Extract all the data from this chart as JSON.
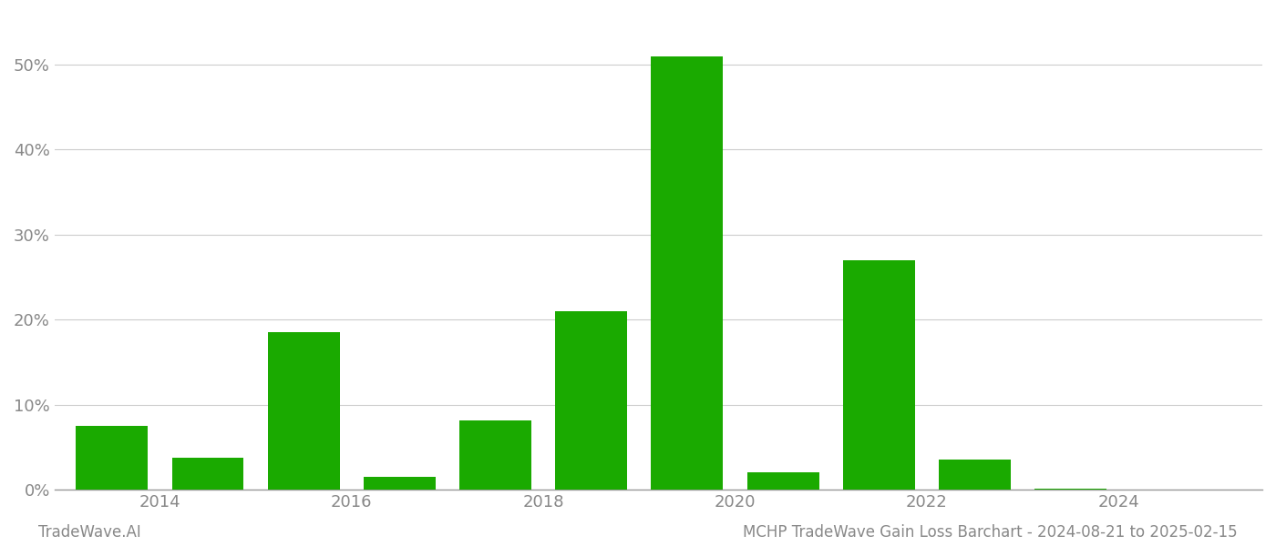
{
  "years": [
    2013,
    2014,
    2015,
    2016,
    2017,
    2018,
    2019,
    2020,
    2021,
    2022,
    2023,
    2024
  ],
  "values": [
    7.5,
    3.8,
    18.5,
    1.5,
    8.2,
    21.0,
    51.0,
    2.0,
    27.0,
    3.5,
    0.15,
    0.0
  ],
  "bar_color": "#1aaa00",
  "background_color": "#ffffff",
  "grid_color": "#cccccc",
  "axis_color": "#999999",
  "tick_color": "#888888",
  "ylabel_ticks": [
    0,
    10,
    20,
    30,
    40,
    50
  ],
  "xtick_positions": [
    2013.5,
    2015.5,
    2017.5,
    2019.5,
    2021.5,
    2023.5
  ],
  "xtick_labels": [
    "2014",
    "2016",
    "2018",
    "2020",
    "2022",
    "2024"
  ],
  "xlim": [
    2012.4,
    2025.0
  ],
  "ylim": [
    0,
    56
  ],
  "title": "MCHP TradeWave Gain Loss Barchart - 2024-08-21 to 2025-02-15",
  "footer_left": "TradeWave.AI",
  "bar_width": 0.75
}
